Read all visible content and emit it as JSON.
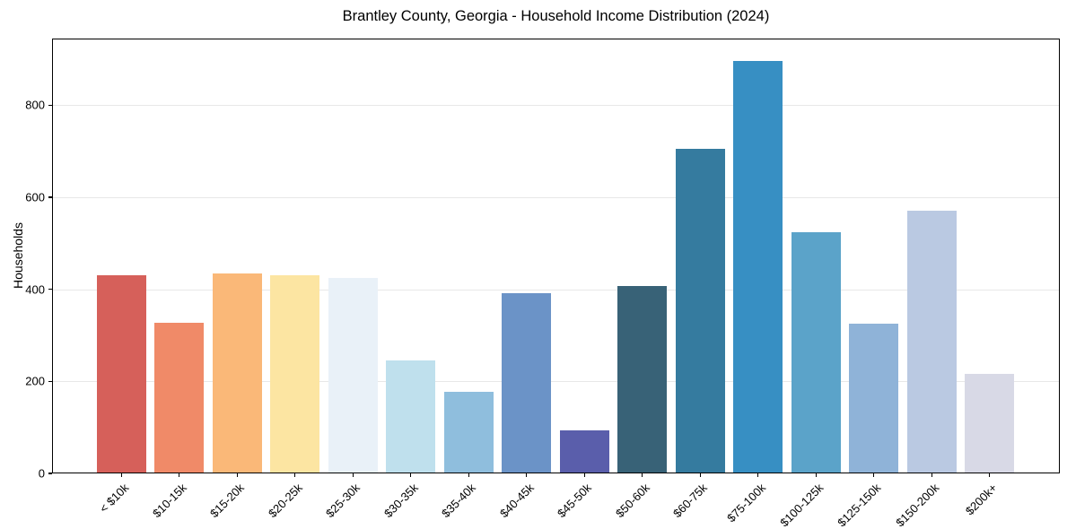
{
  "chart_data": {
    "type": "bar",
    "title": "Brantley County, Georgia - Household Income Distribution (2024)",
    "xlabel": "",
    "ylabel": "Households",
    "categories": [
      "< $10k",
      "$10-15k",
      "$15-20k",
      "$20-25k",
      "$25-30k",
      "$30-35k",
      "$35-40k",
      "$40-45k",
      "$45-50k",
      "$50-60k",
      "$60-75k",
      "$75-100k",
      "$100-125k",
      "$125-150k",
      "$150-200k",
      "$200k+"
    ],
    "values": [
      430,
      327,
      434,
      431,
      425,
      246,
      177,
      392,
      94,
      408,
      706,
      897,
      524,
      326,
      570,
      216
    ],
    "bar_colors": [
      "#d6605a",
      "#f08a68",
      "#fab878",
      "#fce5a2",
      "#e9f1f8",
      "#bfe0ed",
      "#8fbedd",
      "#6b93c7",
      "#5a5eab",
      "#386277",
      "#357b9f",
      "#378fc3",
      "#5ba3c9",
      "#8fb3d8",
      "#bac9e2",
      "#d8d9e6"
    ],
    "ylim": [
      0,
      945
    ],
    "yticks": [
      0,
      200,
      400,
      600,
      800
    ],
    "grid": "horizontal-only",
    "legend": null
  },
  "style": {
    "background_color": "#ffffff",
    "spine_color": "#000000",
    "grid_color": "#e8e8e8",
    "text_color": "#000000"
  }
}
